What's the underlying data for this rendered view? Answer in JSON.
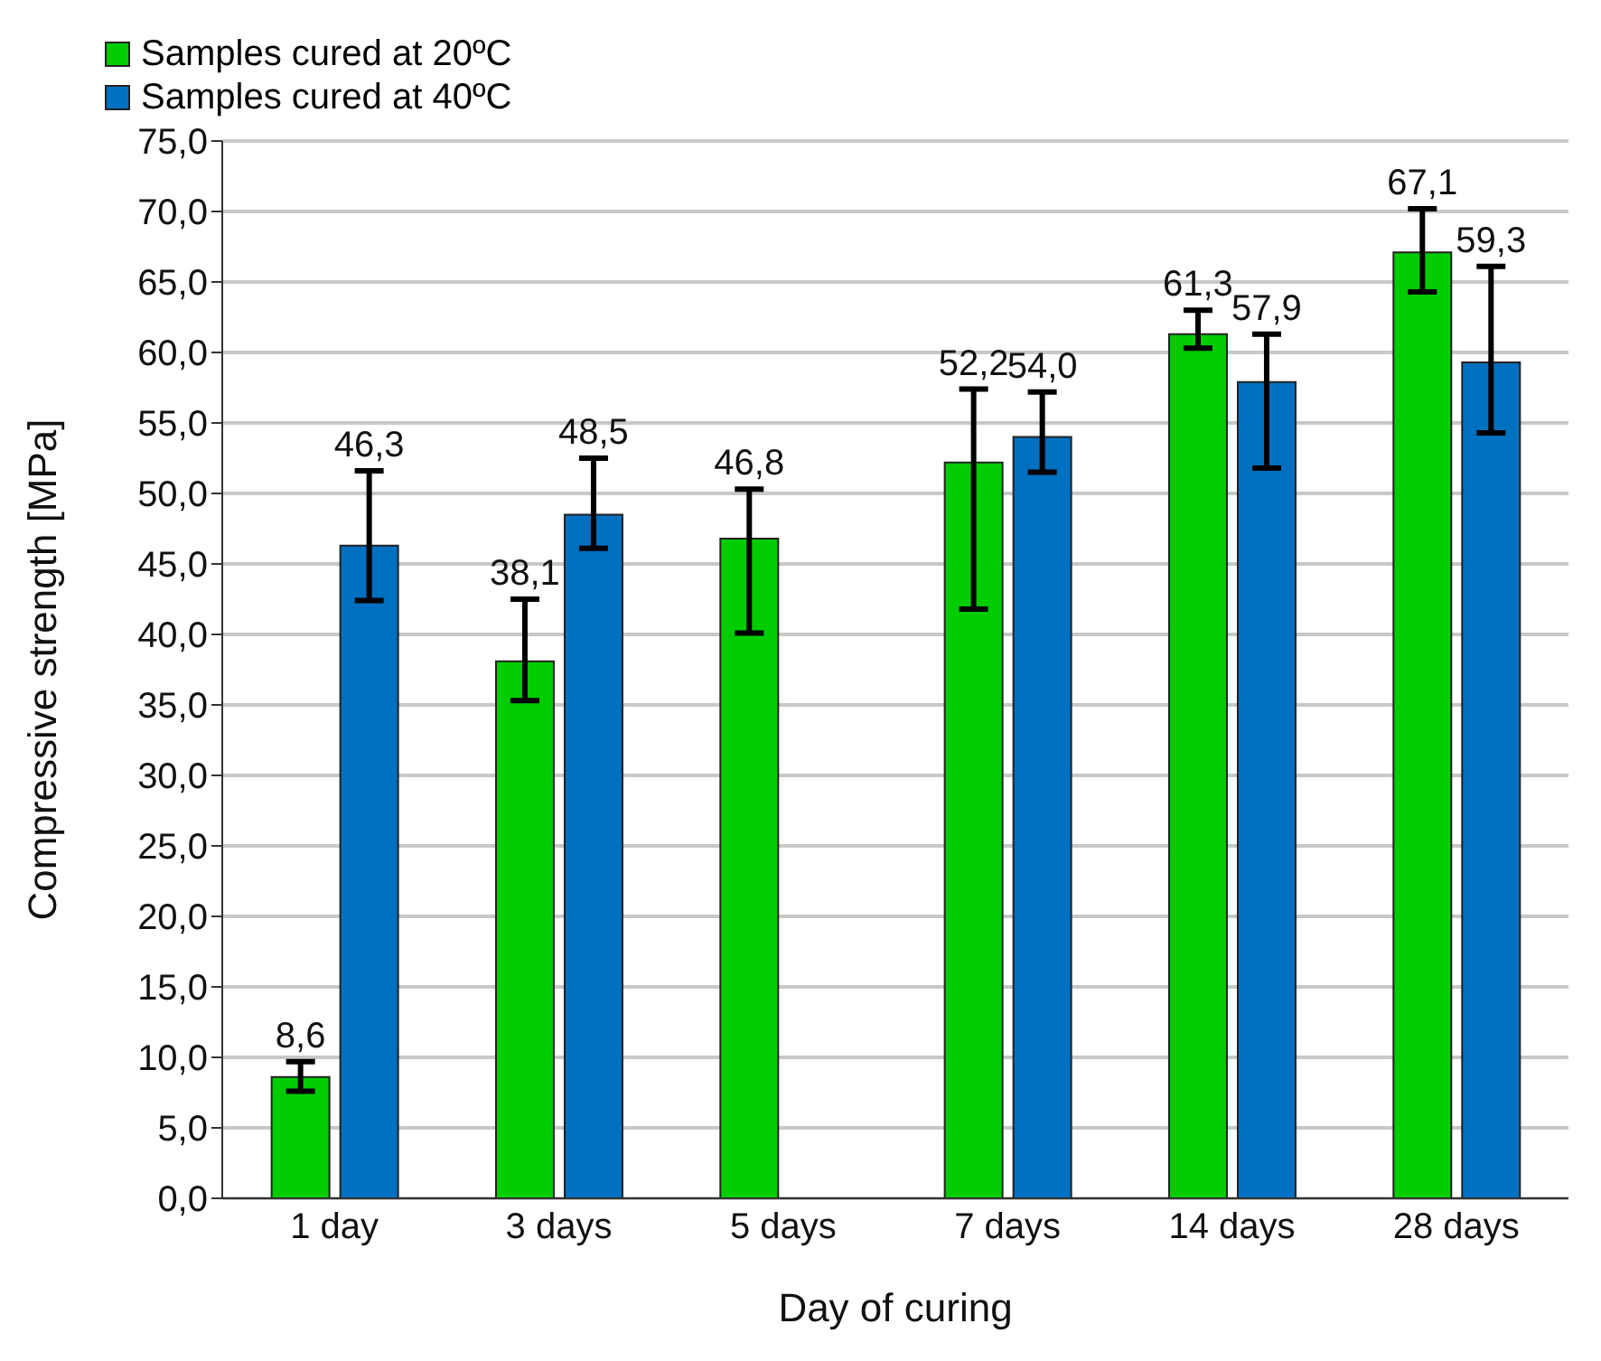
{
  "chart_data": {
    "type": "bar",
    "xlabel": "Day of curing",
    "ylabel": "Compressive strength [MPa]",
    "categories": [
      "1 day",
      "3 days",
      "5 days",
      "7 days",
      "14 days",
      "28 days"
    ],
    "series": [
      {
        "name": "Samples cured at 20ºC",
        "color": "#00cc00",
        "values": [
          8.6,
          38.1,
          46.8,
          52.2,
          61.3,
          67.1
        ],
        "errors": [
          [
            7.6,
            9.7
          ],
          [
            35.3,
            42.5
          ],
          [
            40.1,
            50.3
          ],
          [
            41.8,
            57.4
          ],
          [
            60.3,
            63.0
          ],
          [
            64.3,
            70.2
          ]
        ],
        "value_labels": [
          "8,6",
          "38,1",
          "46,8",
          "52,2",
          "61,3",
          "67,1"
        ]
      },
      {
        "name": "Samples cured at 40ºC",
        "color": "#0070c0",
        "values": [
          46.3,
          48.5,
          null,
          54.0,
          57.9,
          59.3
        ],
        "errors": [
          [
            42.4,
            51.6
          ],
          [
            46.1,
            52.5
          ],
          null,
          [
            51.5,
            57.2
          ],
          [
            51.8,
            61.3
          ],
          [
            54.3,
            66.1
          ]
        ],
        "value_labels": [
          "46,3",
          "48,5",
          null,
          "54,0",
          "57,9",
          "59,3"
        ]
      }
    ],
    "ylim": [
      0,
      75
    ],
    "yticks": [
      {
        "value": 0,
        "label": "0,0"
      },
      {
        "value": 5,
        "label": "5,0"
      },
      {
        "value": 10,
        "label": "10,0"
      },
      {
        "value": 15,
        "label": "15,0"
      },
      {
        "value": 20,
        "label": "20,0"
      },
      {
        "value": 25,
        "label": "25,0"
      },
      {
        "value": 30,
        "label": "30,0"
      },
      {
        "value": 35,
        "label": "35,0"
      },
      {
        "value": 40,
        "label": "40,0"
      },
      {
        "value": 45,
        "label": "45,0"
      },
      {
        "value": 50,
        "label": "50,0"
      },
      {
        "value": 55,
        "label": "55,0"
      },
      {
        "value": 60,
        "label": "60,0"
      },
      {
        "value": 65,
        "label": "65,0"
      },
      {
        "value": 70,
        "label": "70,0"
      },
      {
        "value": 75,
        "label": "75,0"
      }
    ],
    "grid": "y",
    "legend": "top left"
  }
}
